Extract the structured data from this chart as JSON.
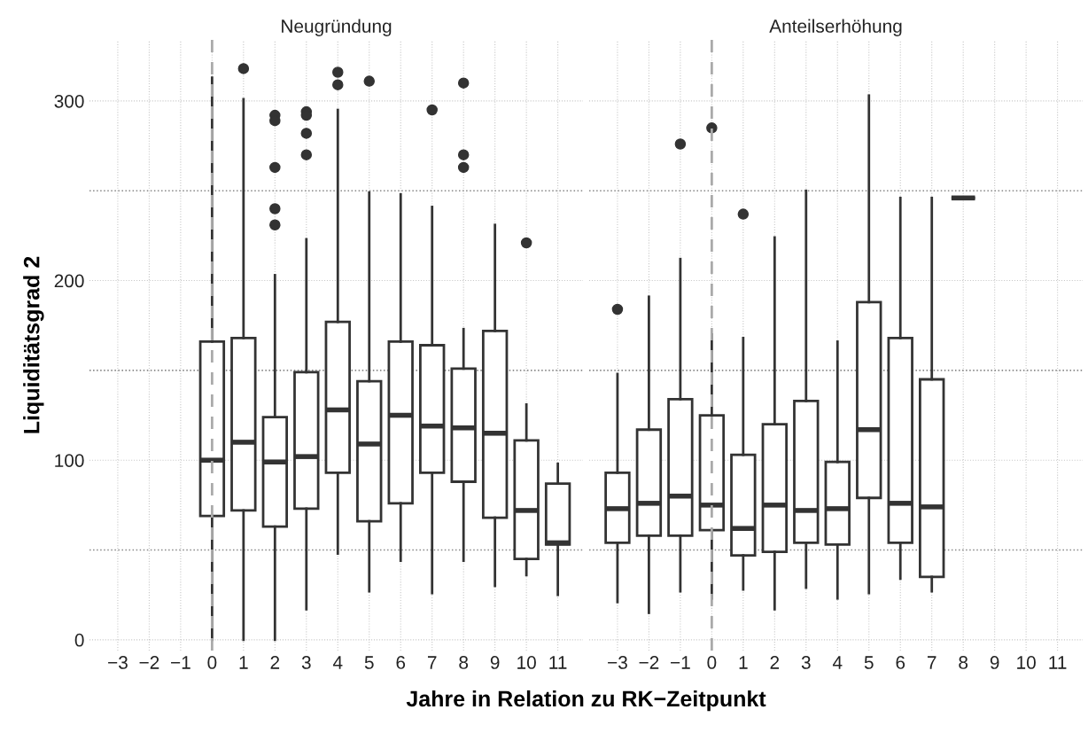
{
  "chart_data": [
    {
      "type": "box",
      "title": "Neugründung",
      "ylabel": "Liquiditätsgrad 2",
      "xlabel": "Jahre in Relation zu RK−Zeitpunkt",
      "x": [
        0,
        1,
        2,
        3,
        4,
        5,
        6,
        7,
        8,
        9,
        10,
        11
      ],
      "boxes": [
        {
          "low": 0,
          "q1": 69,
          "median": 100,
          "q3": 166,
          "high": 313
        },
        {
          "low": 0,
          "q1": 72,
          "median": 110,
          "q3": 168,
          "high": 301,
          "outliers": [
            318
          ]
        },
        {
          "low": 0,
          "q1": 63,
          "median": 99,
          "q3": 124,
          "high": 203,
          "outliers": [
            292,
            289,
            263,
            240,
            231
          ]
        },
        {
          "low": 17,
          "q1": 73,
          "median": 102,
          "q3": 149,
          "high": 223,
          "outliers": [
            294,
            292,
            282,
            270
          ]
        },
        {
          "low": 48,
          "q1": 93,
          "median": 128,
          "q3": 177,
          "high": 295,
          "outliers": [
            316,
            309
          ]
        },
        {
          "low": 27,
          "q1": 66,
          "median": 109,
          "q3": 144,
          "high": 249,
          "outliers": [
            311
          ]
        },
        {
          "low": 44,
          "q1": 76,
          "median": 125,
          "q3": 166,
          "high": 248
        },
        {
          "low": 26,
          "q1": 93,
          "median": 119,
          "q3": 164,
          "high": 241,
          "outliers": [
            295
          ]
        },
        {
          "low": 44,
          "q1": 88,
          "median": 118,
          "q3": 151,
          "high": 173,
          "outliers": [
            310,
            270,
            263
          ]
        },
        {
          "low": 30,
          "q1": 68,
          "median": 115,
          "q3": 172,
          "high": 231
        },
        {
          "low": 36,
          "q1": 45,
          "median": 72,
          "q3": 111,
          "high": 131,
          "outliers": [
            221
          ]
        },
        {
          "low": 25,
          "q1": 53,
          "median": 54,
          "q3": 87,
          "high": 98
        }
      ],
      "xlim": [
        -3.9,
        11.8
      ],
      "ylim": [
        -6,
        334
      ],
      "xticks": [
        {
          "value": -3,
          "label": "−3"
        },
        {
          "value": -2,
          "label": "−2"
        },
        {
          "value": -1,
          "label": "−1"
        },
        0,
        1,
        2,
        3,
        4,
        5,
        6,
        7,
        8,
        9,
        10,
        11
      ],
      "yticks": [
        0,
        {
          "value": 50,
          "label": null
        },
        100,
        {
          "value": 150,
          "label": null
        },
        200,
        {
          "value": 250,
          "label": null
        },
        300
      ],
      "ref_lines": [
        {
          "axis": "x",
          "value": 0,
          "color": "#aaaaaa",
          "line_style": "dashed"
        }
      ],
      "grid": true,
      "color": "#333333"
    },
    {
      "type": "box",
      "title": "Anteilserhöhung",
      "x": [
        -3,
        -2,
        -1,
        0,
        1,
        2,
        3,
        4,
        5,
        6,
        7,
        8
      ],
      "boxes": [
        {
          "low": 21,
          "q1": 54,
          "median": 73,
          "q3": 93,
          "high": 148,
          "outliers": [
            184
          ]
        },
        {
          "low": 15,
          "q1": 58,
          "median": 76,
          "q3": 117,
          "high": 191
        },
        {
          "low": 27,
          "q1": 58,
          "median": 80,
          "q3": 134,
          "high": 212,
          "outliers": [
            276
          ]
        },
        {
          "low": 23,
          "q1": 61,
          "median": 75,
          "q3": 125,
          "high": 170,
          "outliers": [
            285
          ]
        },
        {
          "low": 28,
          "q1": 47,
          "median": 62,
          "q3": 103,
          "high": 168,
          "outliers": [
            237
          ]
        },
        {
          "low": 17,
          "q1": 49,
          "median": 75,
          "q3": 120,
          "high": 224
        },
        {
          "low": 29,
          "q1": 54,
          "median": 72,
          "q3": 133,
          "high": 250
        },
        {
          "low": 23,
          "q1": 53,
          "median": 73,
          "q3": 99,
          "high": 166
        },
        {
          "low": 26,
          "q1": 79,
          "median": 117,
          "q3": 188,
          "high": 303
        },
        {
          "low": 34,
          "q1": 54,
          "median": 76,
          "q3": 168,
          "high": 246
        },
        {
          "low": 27,
          "q1": 35,
          "median": 74,
          "q3": 145,
          "high": 246
        },
        {
          "low": 246,
          "q1": 246,
          "median": 246,
          "q3": 246,
          "high": 246
        }
      ],
      "xlim": [
        -3.9,
        11.8
      ],
      "ylim": [
        -6,
        334
      ],
      "xticks": [
        {
          "value": -3,
          "label": "−3"
        },
        {
          "value": -2,
          "label": "−2"
        },
        {
          "value": -1,
          "label": "−1"
        },
        0,
        1,
        2,
        3,
        4,
        5,
        6,
        7,
        8,
        9,
        10,
        11
      ],
      "yticks": [
        0,
        {
          "value": 50,
          "label": null
        },
        100,
        {
          "value": 150,
          "label": null
        },
        200,
        {
          "value": 250,
          "label": null
        },
        300
      ],
      "tick_labels": "x",
      "ref_lines": [
        {
          "axis": "x",
          "value": 0,
          "color": "#aaaaaa",
          "line_style": "dashed"
        }
      ],
      "grid": true,
      "color": "#333333"
    }
  ]
}
